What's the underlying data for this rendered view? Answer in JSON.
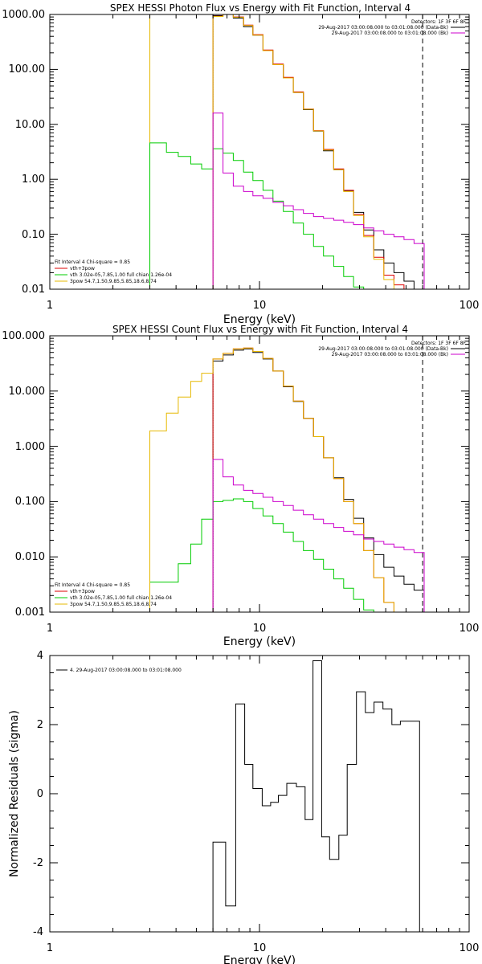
{
  "chart_data": [
    {
      "id": "photon",
      "type": "line",
      "title": "SPEX HESSI Photon Flux vs Energy with Fit Function, Interval 4",
      "xlabel": "Energy (keV)",
      "ylabel": "",
      "xscale": "log",
      "yscale": "log",
      "xlim": [
        1,
        100
      ],
      "ylim": [
        0.01,
        1000
      ],
      "x_ticks": [
        1,
        10,
        100
      ],
      "x_tick_labels": [
        "1",
        "10",
        "100"
      ],
      "y_ticks": [
        0.01,
        0.1,
        1,
        10,
        100,
        1000
      ],
      "y_tick_labels": [
        "0.01",
        "0.10",
        "1.00",
        "10.00",
        "100.00",
        "1000.00"
      ],
      "vlines": [
        {
          "x": 3.0,
          "color": "#e6b800",
          "style": "solid"
        },
        {
          "x": 6.0,
          "color": "#cc00cc",
          "style": "dotted"
        },
        {
          "x": 60,
          "color": "#000000",
          "style": "dashed"
        }
      ],
      "legend_top_right": [
        {
          "text": "Detectors: 1F 3F 6F 8F",
          "color": ""
        },
        {
          "text": "29-Aug-2017 03:00:08.000 to 03:01:08.000 (Data-Bk)",
          "color": "#000000"
        },
        {
          "text": "29-Aug-2017 03:00:08.000 to 03:01:08.000 (Bk)",
          "color": "#cc00cc"
        }
      ],
      "legend_bottom_left": [
        {
          "text": "Fit Interval 4   Chi-square = 0.85",
          "color": ""
        },
        {
          "text": "vth+3pow",
          "color": "#dd0000"
        },
        {
          "text": "vth 3.02e-05,7.85,1.00   full chian 1.26e-04",
          "color": "#00cc00"
        },
        {
          "text": "3pow 54.7,1.50,9.85,5.85,18.6,8.74",
          "color": "#e6b800"
        }
      ],
      "series": [
        {
          "name": "Data-Bk",
          "color": "#000000",
          "edges": [
            6.0,
            6.7,
            7.5,
            8.4,
            9.3,
            10.4,
            11.6,
            13.0,
            14.5,
            16.2,
            18.1,
            20.2,
            22.6,
            25.2,
            28.1,
            31.4,
            35.1,
            39.2,
            43.8,
            48.9,
            54.6,
            61.0
          ],
          "values": [
            950,
            1000,
            860,
            600,
            420,
            220,
            122,
            70,
            38,
            18.5,
            7.5,
            3.3,
            1.5,
            0.62,
            0.25,
            0.12,
            0.052,
            0.03,
            0.02,
            0.014,
            0.01
          ]
        },
        {
          "name": "vth+3pow",
          "color": "#dd0000",
          "edges": [
            6.0,
            6.7,
            7.5,
            8.4,
            9.3,
            10.4,
            11.6,
            13.0,
            14.5,
            16.2,
            18.1,
            20.2,
            22.6,
            25.2,
            28.1,
            31.4,
            35.1,
            39.2,
            43.8,
            48.9
          ],
          "values": [
            930,
            1030,
            900,
            640,
            430,
            225,
            125,
            72,
            39,
            19,
            7.7,
            3.5,
            1.55,
            0.63,
            0.23,
            0.095,
            0.038,
            0.018,
            0.012
          ]
        },
        {
          "name": "vth",
          "color": "#00cc00",
          "edges": [
            3.0,
            3.6,
            4.1,
            4.7,
            5.3,
            6.0,
            6.7,
            7.5,
            8.4,
            9.3,
            10.4,
            11.6,
            13.0,
            14.5,
            16.2,
            18.1,
            20.2,
            22.6,
            25.2,
            28.1,
            31.4,
            35.1
          ],
          "values": [
            4.6,
            3.1,
            2.6,
            1.9,
            1.55,
            3.6,
            3.0,
            2.2,
            1.35,
            0.95,
            0.63,
            0.4,
            0.26,
            0.16,
            0.1,
            0.06,
            0.04,
            0.026,
            0.017,
            0.011,
            0.0085
          ]
        },
        {
          "name": "3pow",
          "color": "#e6b800",
          "edges": [
            6.0,
            6.7,
            7.5,
            8.4,
            9.3,
            10.4,
            11.6,
            13.0,
            14.5,
            16.2,
            18.1,
            20.2,
            22.6,
            25.2,
            28.1,
            31.4,
            35.1,
            39.2,
            43.8
          ],
          "values": [
            920,
            1020,
            890,
            630,
            420,
            220,
            122,
            70,
            38,
            18.8,
            7.6,
            3.4,
            1.5,
            0.6,
            0.22,
            0.09,
            0.035,
            0.015
          ]
        },
        {
          "name": "Bk",
          "color": "#cc00cc",
          "edges": [
            6.0,
            6.7,
            7.5,
            8.4,
            9.3,
            10.4,
            11.6,
            13.0,
            14.5,
            16.2,
            18.1,
            20.2,
            22.6,
            25.2,
            28.1,
            31.4,
            35.1,
            39.2,
            43.8,
            48.9,
            54.6,
            61.0
          ],
          "values": [
            16,
            1.3,
            0.75,
            0.6,
            0.5,
            0.45,
            0.38,
            0.33,
            0.28,
            0.24,
            0.21,
            0.195,
            0.18,
            0.165,
            0.15,
            0.13,
            0.115,
            0.1,
            0.09,
            0.08,
            0.068
          ]
        }
      ]
    },
    {
      "id": "count",
      "type": "line",
      "title": "SPEX HESSI Count Flux vs Energy with Fit Function, Interval 4",
      "xlabel": "Energy (keV)",
      "ylabel": "",
      "xscale": "log",
      "yscale": "log",
      "xlim": [
        1,
        100
      ],
      "ylim": [
        0.001,
        100
      ],
      "x_ticks": [
        1,
        10,
        100
      ],
      "x_tick_labels": [
        "1",
        "10",
        "100"
      ],
      "y_ticks": [
        0.001,
        0.01,
        0.1,
        1,
        10,
        100
      ],
      "y_tick_labels": [
        "0.001",
        "0.010",
        "0.100",
        "1.000",
        "10.000",
        "100.000"
      ],
      "vlines": [
        {
          "x": 6.0,
          "color": "#000000",
          "style": "dotted",
          "ymin": 30
        },
        {
          "x": 60,
          "color": "#000000",
          "style": "dashed"
        }
      ],
      "legend_top_right": [
        {
          "text": "Detectors: 1F 3F 6F 8F",
          "color": ""
        },
        {
          "text": "29-Aug-2017 03:00:08.000 to 03:01:08.000 (Data-Bk)",
          "color": "#000000"
        },
        {
          "text": "29-Aug-2017 03:00:08.000 to 03:01:08.000 (Bk)",
          "color": "#cc00cc"
        }
      ],
      "legend_bottom_left": [
        {
          "text": "Fit Interval 4   Chi-square = 0.85",
          "color": ""
        },
        {
          "text": "vth+3pow",
          "color": "#dd0000"
        },
        {
          "text": "vth 3.02e-05,7.85,1.00   full chian 1.26e-04",
          "color": "#00cc00"
        },
        {
          "text": "3pow 54.7,1.50,9.85,5.85,18.6,8.74",
          "color": "#e6b800"
        }
      ],
      "series": [
        {
          "name": "Data-Bk",
          "color": "#000000",
          "edges": [
            6.0,
            6.7,
            7.5,
            8.4,
            9.3,
            10.4,
            11.6,
            13.0,
            14.5,
            16.2,
            18.1,
            20.2,
            22.6,
            25.2,
            28.1,
            31.4,
            35.1,
            39.2,
            43.8,
            48.9,
            54.6,
            61.0
          ],
          "values": [
            35,
            45,
            55,
            58,
            50,
            38,
            23,
            12,
            6.5,
            3.2,
            1.5,
            0.62,
            0.27,
            0.11,
            0.05,
            0.022,
            0.011,
            0.0065,
            0.0045,
            0.0032,
            0.0025
          ]
        },
        {
          "name": "vth+3pow",
          "color": "#dd0000",
          "edges": [
            6.0,
            6.7,
            7.5,
            8.4,
            9.3,
            10.4,
            11.6,
            13.0,
            14.5,
            16.2,
            18.1,
            20.2,
            22.6,
            25.2,
            28.1,
            31.4,
            35.1,
            39.2,
            43.8
          ],
          "values": [
            38,
            48,
            58,
            60,
            52,
            39,
            23,
            12.3,
            6.6,
            3.2,
            1.5,
            0.62,
            0.26,
            0.1,
            0.04,
            0.013,
            0.0042,
            0.0015
          ]
        },
        {
          "name": "vth",
          "color": "#00cc00",
          "edges": [
            3.0,
            3.6,
            4.1,
            4.7,
            5.3,
            6.0,
            6.7,
            7.5,
            8.4,
            9.3,
            10.4,
            11.6,
            13.0,
            14.5,
            16.2,
            18.1,
            20.2,
            22.6,
            25.2,
            28.1,
            31.4,
            35.1
          ],
          "values": [
            0.0035,
            0.0035,
            0.0075,
            0.017,
            0.048,
            0.1,
            0.105,
            0.112,
            0.1,
            0.075,
            0.055,
            0.04,
            0.028,
            0.019,
            0.013,
            0.009,
            0.006,
            0.004,
            0.0027,
            0.0017,
            0.0011
          ]
        },
        {
          "name": "3pow",
          "color": "#e6b800",
          "edges": [
            3.0,
            3.6,
            4.1,
            4.7,
            5.3,
            6.0,
            6.7,
            7.5,
            8.4,
            9.3,
            10.4,
            11.6,
            13.0,
            14.5,
            16.2,
            18.1,
            20.2,
            22.6,
            25.2,
            28.1,
            31.4,
            35.1,
            39.2,
            43.8
          ],
          "values": [
            1.9,
            4.0,
            7.8,
            15,
            21,
            38,
            48,
            58,
            60,
            52,
            39,
            23,
            12.3,
            6.6,
            3.2,
            1.5,
            0.62,
            0.26,
            0.1,
            0.04,
            0.013,
            0.0042,
            0.0015
          ]
        },
        {
          "name": "Bk",
          "color": "#cc00cc",
          "edges": [
            6.0,
            6.7,
            7.5,
            8.4,
            9.3,
            10.4,
            11.6,
            13.0,
            14.5,
            16.2,
            18.1,
            20.2,
            22.6,
            25.2,
            28.1,
            31.4,
            35.1,
            39.2,
            43.8,
            48.9,
            54.6,
            61.0
          ],
          "values": [
            0.58,
            0.28,
            0.2,
            0.16,
            0.14,
            0.12,
            0.1,
            0.085,
            0.07,
            0.058,
            0.048,
            0.04,
            0.034,
            0.029,
            0.025,
            0.021,
            0.019,
            0.017,
            0.015,
            0.0135,
            0.012
          ]
        }
      ]
    },
    {
      "id": "residuals",
      "type": "line",
      "title": "",
      "xlabel": "Energy (keV)",
      "ylabel": "Normalized Residuals (sigma)",
      "xscale": "log",
      "yscale": "linear",
      "xlim": [
        1,
        100
      ],
      "ylim": [
        -4,
        4
      ],
      "x_ticks": [
        1,
        10,
        100
      ],
      "x_tick_labels": [
        "1",
        "10",
        "100"
      ],
      "y_ticks": [
        -4,
        -2,
        0,
        2,
        4
      ],
      "y_tick_labels": [
        "-4",
        "-2",
        "0",
        "2",
        "4"
      ],
      "vlines": [],
      "legend_top_left": [
        {
          "text": "4. 29-Aug-2017 03:00:08.000 to 03:01:08.000",
          "color": "#000000"
        }
      ],
      "series": [
        {
          "name": "",
          "color": "#000000",
          "edges": [
            6.0,
            6.9,
            7.7,
            8.5,
            9.3,
            10.3,
            11.3,
            12.3,
            13.5,
            15.0,
            16.5,
            18.0,
            19.8,
            21.6,
            23.9,
            26.2,
            29.0,
            32.0,
            35.2,
            38.8,
            42.8,
            47.0,
            52.0,
            58.0
          ],
          "values": [
            -1.4,
            -3.25,
            2.6,
            0.85,
            0.15,
            -0.35,
            -0.25,
            -0.05,
            0.3,
            0.2,
            -0.75,
            3.85,
            -1.25,
            -1.9,
            -1.2,
            0.85,
            2.95,
            2.35,
            2.65,
            2.45,
            2.0,
            2.1,
            2.1
          ]
        }
      ]
    }
  ]
}
